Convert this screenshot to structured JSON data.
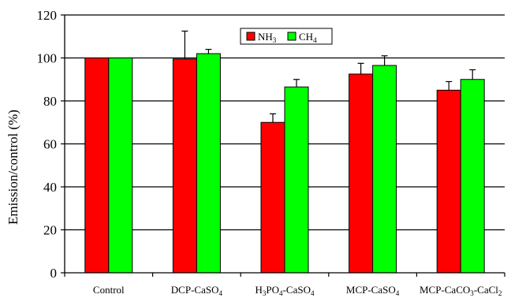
{
  "chart_data": {
    "type": "bar",
    "ylabel": "Emission/control (%)",
    "xlabel": "",
    "ylim": [
      0,
      120
    ],
    "yticks": [
      0,
      20,
      40,
      60,
      80,
      100,
      120
    ],
    "grid": "horizontal",
    "legend_placement": "top-center",
    "categories": [
      {
        "base": "Control",
        "parts": [
          {
            "t": "Control"
          }
        ]
      },
      {
        "base": "DCP-CaSO4",
        "parts": [
          {
            "t": "DCP-CaSO"
          },
          {
            "t": "4",
            "sub": true
          }
        ]
      },
      {
        "base": "H3PO4-CaSO4",
        "parts": [
          {
            "t": "H"
          },
          {
            "t": "3",
            "sub": true
          },
          {
            "t": "PO"
          },
          {
            "t": "4",
            "sub": true
          },
          {
            "t": "-CaSO"
          },
          {
            "t": "4",
            "sub": true
          }
        ]
      },
      {
        "base": "MCP-CaSO4",
        "parts": [
          {
            "t": "MCP-CaSO"
          },
          {
            "t": "4",
            "sub": true
          }
        ]
      },
      {
        "base": "MCP-CaCO3-CaCl2",
        "parts": [
          {
            "t": "MCP-CaCO"
          },
          {
            "t": "3",
            "sub": true
          },
          {
            "t": "-CaCl"
          },
          {
            "t": "2",
            "sub": true
          }
        ]
      }
    ],
    "series": [
      {
        "name": "NH3",
        "legend_parts": [
          {
            "t": "NH"
          },
          {
            "t": "3",
            "sub": true
          }
        ],
        "color": "#ff0000",
        "values": [
          100,
          99.5,
          70,
          92.5,
          85
        ],
        "errors": [
          0,
          13,
          4,
          5,
          4
        ]
      },
      {
        "name": "CH4",
        "legend_parts": [
          {
            "t": "CH"
          },
          {
            "t": "4",
            "sub": true
          }
        ],
        "color": "#00ff00",
        "values": [
          100,
          102,
          86.5,
          96.5,
          90
        ],
        "errors": [
          0,
          2,
          3.5,
          4.5,
          4.5
        ]
      }
    ]
  }
}
